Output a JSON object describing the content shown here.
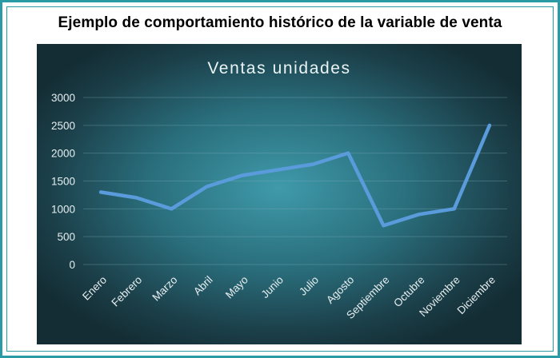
{
  "page": {
    "caption": "Ejemplo de comportamiento histórico de la variable de venta"
  },
  "colors": {
    "frame": "#2a9aa4",
    "line": "#5a9bdc",
    "text": "#e6eef0"
  },
  "chart_data": {
    "type": "line",
    "title": "Ventas unidades",
    "xlabel": "",
    "ylabel": "",
    "categories": [
      "Enero",
      "Febrero",
      "Marzo",
      "Abril",
      "Mayo",
      "Junio",
      "Julio",
      "Agosto",
      "Septiembre",
      "Octubre",
      "Noviembre",
      "Diciembre"
    ],
    "series": [
      {
        "values": [
          1300,
          1200,
          1000,
          1400,
          1600,
          1700,
          1800,
          2000,
          700,
          900,
          1000,
          2500
        ]
      }
    ],
    "ylim": [
      0,
      3000
    ],
    "yticks": [
      0,
      500,
      1000,
      1500,
      2000,
      2500,
      3000
    ],
    "grid": true,
    "legend": "none"
  }
}
